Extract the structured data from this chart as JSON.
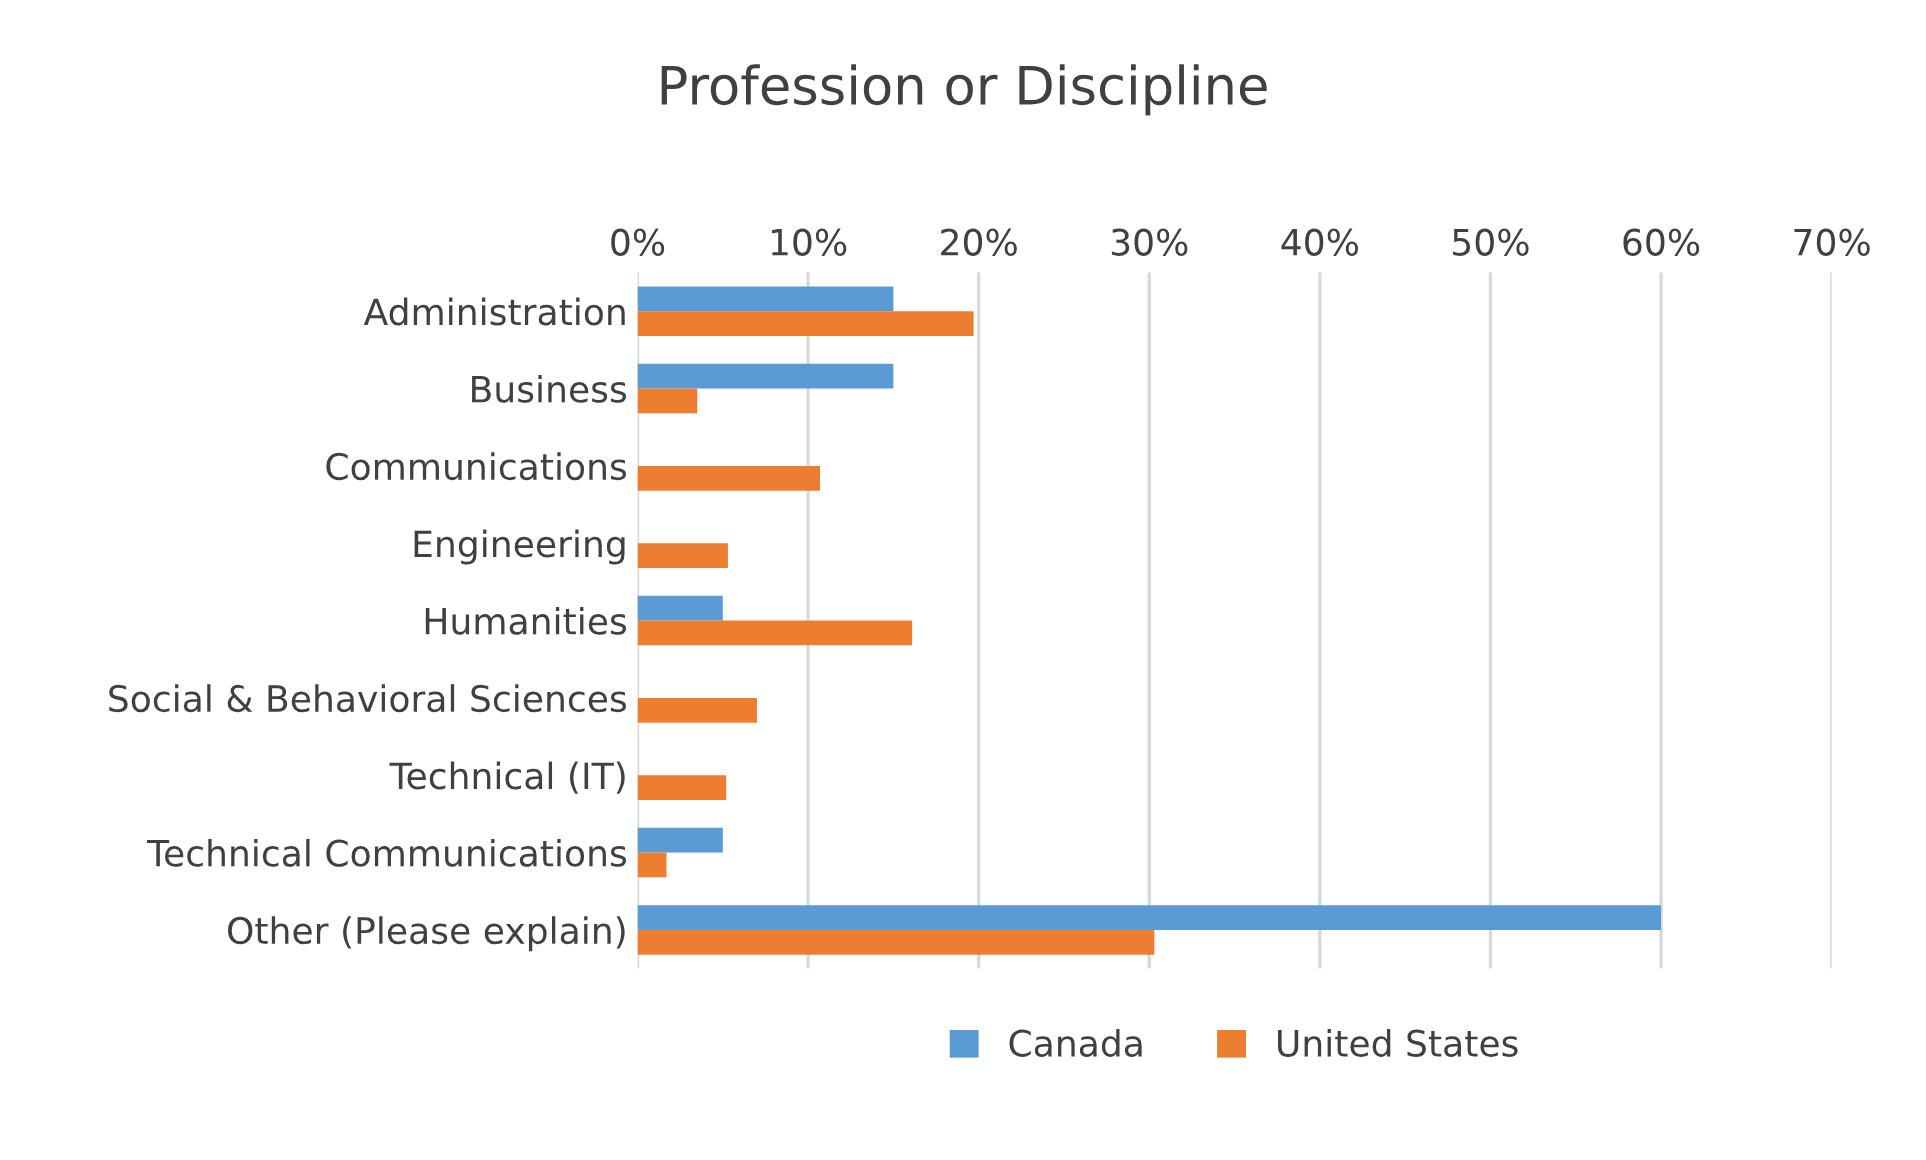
{
  "chart_data": {
    "type": "bar",
    "orientation": "horizontal",
    "title": "Profession or Discipline",
    "categories": [
      "Administration",
      "Business",
      "Communications",
      "Engineering",
      "Humanities",
      "Social & Behavioral Sciences",
      "Technical (IT)",
      "Technical Communications",
      "Other (Please explain)"
    ],
    "series": [
      {
        "name": "Canada",
        "color": "#5b9bd5",
        "values": [
          15,
          15,
          0,
          0,
          5,
          0,
          0,
          5,
          60
        ]
      },
      {
        "name": "United States",
        "color": "#ed7d31",
        "values": [
          19.7,
          3.5,
          10.7,
          5.3,
          16.1,
          7.0,
          5.2,
          1.7,
          30.3
        ]
      }
    ],
    "xlim": [
      0,
      70
    ],
    "xticks": [
      {
        "value": 0,
        "label": "0%"
      },
      {
        "value": 10,
        "label": "10%"
      },
      {
        "value": 20,
        "label": "20%"
      },
      {
        "value": 30,
        "label": "30%"
      },
      {
        "value": 40,
        "label": "40%"
      },
      {
        "value": 50,
        "label": "50%"
      },
      {
        "value": 60,
        "label": "60%"
      },
      {
        "value": 70,
        "label": "70%"
      }
    ],
    "grid": "x",
    "legend": "bottom"
  }
}
